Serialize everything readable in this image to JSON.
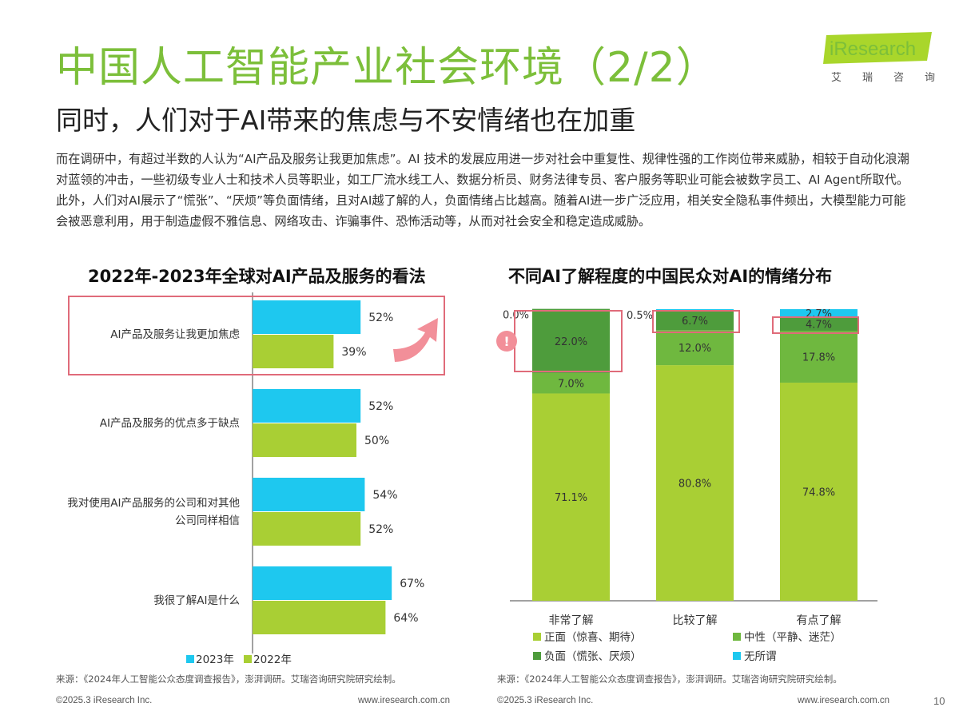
{
  "title": "中国人工智能产业社会环境（2/2）",
  "subtitle": "同时，人们对于AI带来的焦虑与不安情绪也在加重",
  "logo": {
    "word": "iResearch",
    "cn": "艾瑞咨询"
  },
  "intro": "而在调研中，有超过半数的人认为“AI产品及服务让我更加焦虑”。AI 技术的发展应用进一步对社会中重复性、规律性强的工作岗位带来威胁，相较于自动化浪潮对蓝领的冲击，一些初级专业人士和技术人员等职业，如工厂流水线工人、数据分析员、财务法律专员、客户服务等职业可能会被数字员工、AI Agent所取代。此外，人们对AI展示了“慌张”、“厌烦”等负面情绪，且对AI越了解的人，负面情绪占比越高。随着AI进一步广泛应用，相关安全隐私事件频出，大模型能力可能会被恶意利用，用于制造虚假不雅信息、网络攻击、诈骗事件、恐怖活动等，从而对社会安全和稳定造成威胁。",
  "source_left": "来源：《2024年人工智能公众态度调查报告》，澎湃调研。艾瑞咨询研究院研究绘制。",
  "source_right": "来源：《2024年人工智能公众态度调查报告》，澎湃调研。艾瑞咨询研究院研究绘制。",
  "footer": {
    "copyright": "©2025.3 iResearch Inc.",
    "site": "www.iresearch.com.cn",
    "page": "10"
  },
  "colors": {
    "green_title": "#7cbf3a",
    "blue": "#1ec8ef",
    "lime": "#a9cf34",
    "positive": "#a9cf34",
    "neutral": "#6fb83f",
    "negative": "#4e9c3c",
    "indifferent": "#1ec8ef",
    "highlight": "#e06b7a",
    "warning": "#f28f99"
  },
  "chart_data": [
    {
      "type": "bar",
      "orientation": "horizontal",
      "title": "2022年-2023年全球对AI产品及服务的看法",
      "categories": [
        [
          "AI产品及服务让我更加焦虑"
        ],
        [
          "AI产品及服务的优点多于缺点"
        ],
        [
          "我对使用AI产品服务的公司和对其他",
          "公司同样相信"
        ],
        [
          "我很了解AI是什么"
        ]
      ],
      "series": [
        {
          "name": "2023年",
          "color": "#1ec8ef",
          "values": [
            52,
            52,
            54,
            67
          ],
          "labels": [
            "52%",
            "52%",
            "54%",
            "67%"
          ]
        },
        {
          "name": "2022年",
          "color": "#a9cf34",
          "values": [
            39,
            50,
            52,
            64
          ],
          "labels": [
            "39%",
            "50%",
            "52%",
            "64%"
          ]
        }
      ],
      "unit": "%",
      "highlighted_category": 0,
      "legend_position": "bottom-left"
    },
    {
      "type": "bar",
      "stacked": true,
      "title": "不同AI了解程度的中国民众对AI的情绪分布",
      "categories": [
        "非常了解",
        "比较了解",
        "有点了解"
      ],
      "series": [
        {
          "name": "正面（惊喜、期待）",
          "color": "#a9cf34",
          "values": [
            71.1,
            80.8,
            74.8
          ],
          "labels": [
            "71.1%",
            "80.8%",
            "74.8%"
          ]
        },
        {
          "name": "中性（平静、迷茫）",
          "color": "#6fb83f",
          "values": [
            7.0,
            12.0,
            17.8
          ],
          "labels": [
            "7.0%",
            "12.0%",
            "17.8%"
          ]
        },
        {
          "name": "负面（慌张、厌烦）",
          "color": "#4e9c3c",
          "values": [
            22.0,
            6.7,
            4.7
          ],
          "labels": [
            "22.0%",
            "6.7%",
            "4.7%"
          ]
        },
        {
          "name": "无所谓",
          "color": "#1ec8ef",
          "values": [
            0.0,
            0.5,
            2.7
          ],
          "labels": [
            "0.0%",
            "0.5%",
            "2.7%"
          ]
        }
      ],
      "unit": "%",
      "ylim": [
        0,
        100
      ],
      "highlighted_series": "负面（慌张、厌烦）",
      "legend_position": "bottom"
    }
  ]
}
